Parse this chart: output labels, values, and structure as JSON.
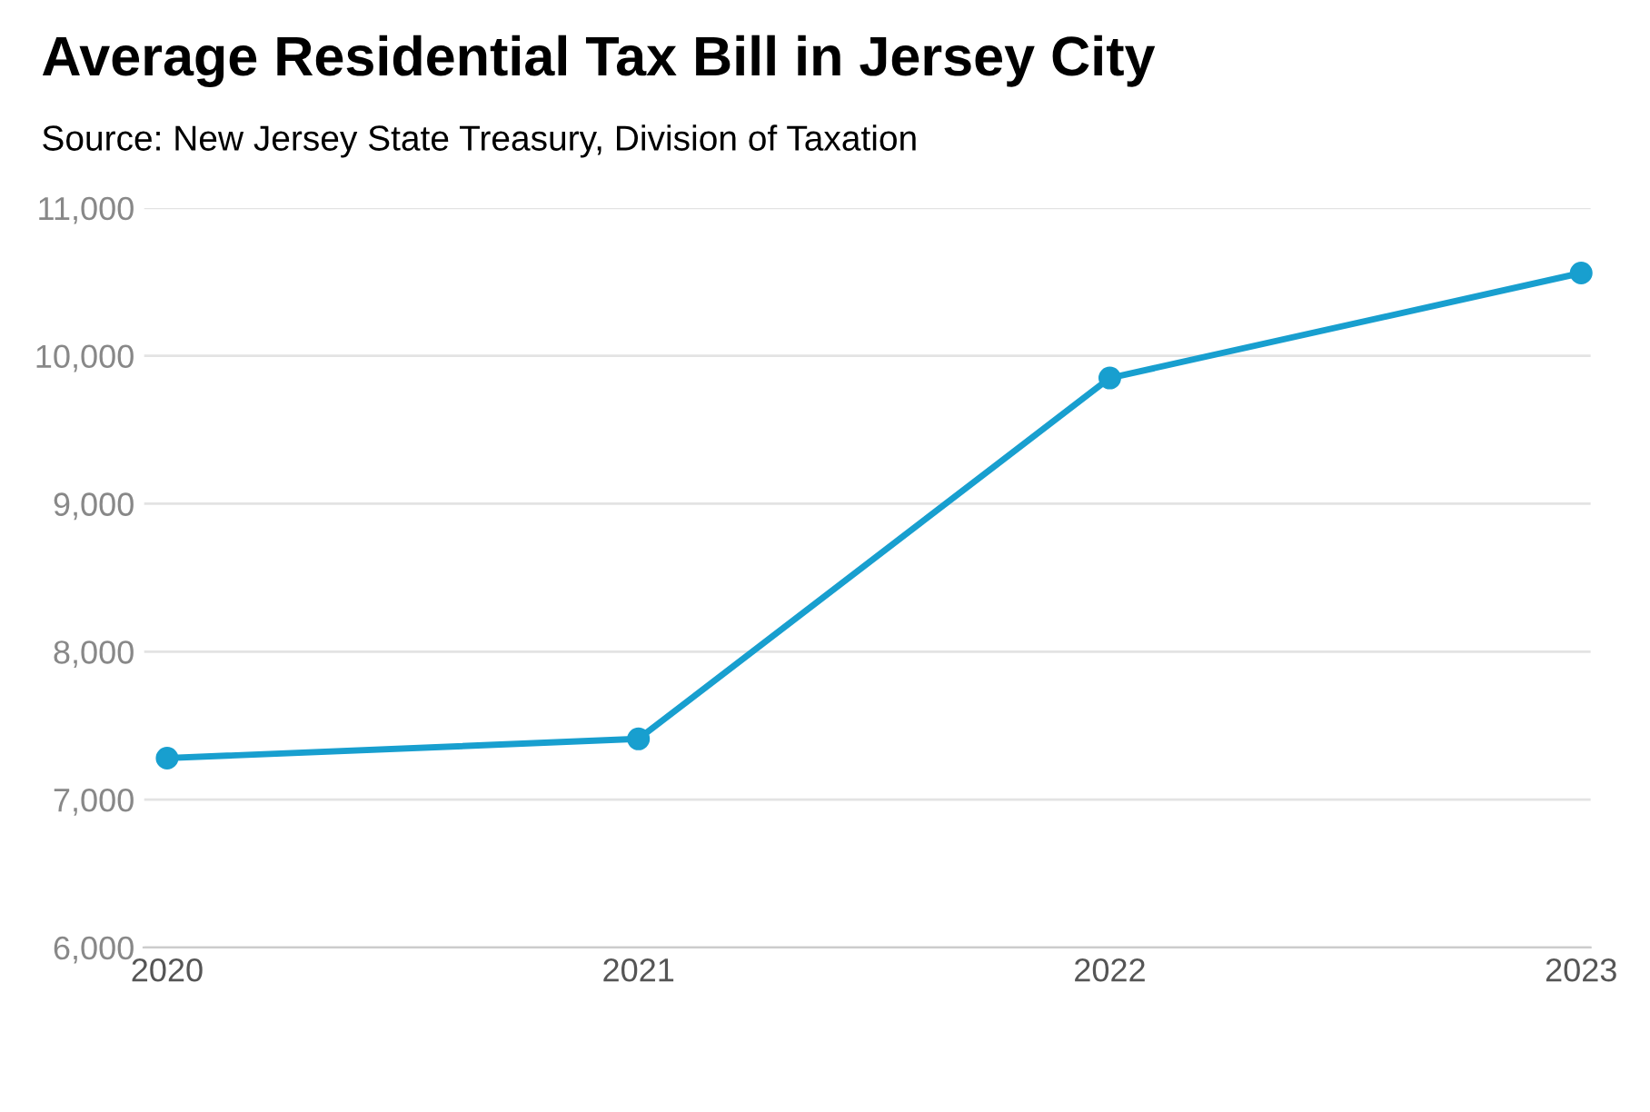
{
  "chart_data": {
    "type": "line",
    "title": "Average Residential Tax Bill in Jersey City",
    "subtitle": "Source: New Jersey State Treasury, Division of Taxation",
    "categories": [
      "2020",
      "2021",
      "2022",
      "2023"
    ],
    "series": [
      {
        "color": "#189fcf",
        "values": [
          7280,
          7410,
          9850,
          10560
        ]
      }
    ],
    "ylim": [
      6000,
      11000
    ],
    "yticks": [
      {
        "value": 6000,
        "label": "6,000"
      },
      {
        "value": 7000,
        "label": "7,000"
      },
      {
        "value": 8000,
        "label": "8,000"
      },
      {
        "value": 9000,
        "label": "9,000"
      },
      {
        "value": 10000,
        "label": "10,000"
      },
      {
        "value": 11000,
        "label": "11,000"
      }
    ],
    "grid": "y",
    "marker": "circle",
    "line_style": "solid"
  }
}
